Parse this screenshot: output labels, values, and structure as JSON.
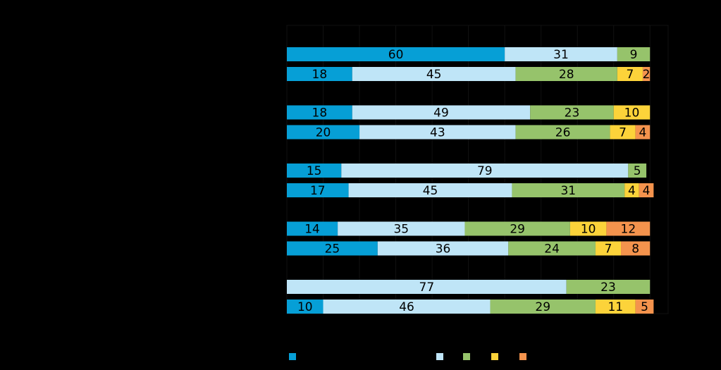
{
  "colors": {
    "background": "#000000",
    "gridline": "#111111",
    "series": [
      "#069fd6",
      "#bfe5f7",
      "#96c36b",
      "#fcd33a",
      "#f4934d"
    ]
  },
  "chart_data": {
    "type": "bar",
    "orientation": "horizontal",
    "stacked": true,
    "xlim": [
      0,
      105
    ],
    "grid": true,
    "title": "",
    "xlabel": "",
    "ylabel": "",
    "legend": {
      "position": "bottom",
      "entries": [
        {
          "name": "",
          "color": "#069fd6"
        },
        {
          "name": "",
          "color": "#bfe5f7"
        },
        {
          "name": "",
          "color": "#96c36b"
        },
        {
          "name": "",
          "color": "#fcd33a"
        },
        {
          "name": "",
          "color": "#f4934d"
        }
      ]
    },
    "groups": [
      {
        "bars": [
          [
            60,
            31,
            9,
            0,
            0
          ],
          [
            18,
            45,
            28,
            7,
            2
          ]
        ]
      },
      {
        "bars": [
          [
            18,
            49,
            23,
            10,
            0
          ],
          [
            20,
            43,
            26,
            7,
            4
          ]
        ]
      },
      {
        "bars": [
          [
            15,
            79,
            5,
            0,
            0
          ],
          [
            17,
            45,
            31,
            4,
            4
          ]
        ]
      },
      {
        "bars": [
          [
            14,
            35,
            29,
            10,
            12
          ],
          [
            25,
            36,
            24,
            7,
            8
          ]
        ]
      },
      {
        "bars": [
          [
            0,
            77,
            23,
            0,
            0
          ],
          [
            10,
            46,
            29,
            11,
            5
          ]
        ]
      }
    ]
  }
}
